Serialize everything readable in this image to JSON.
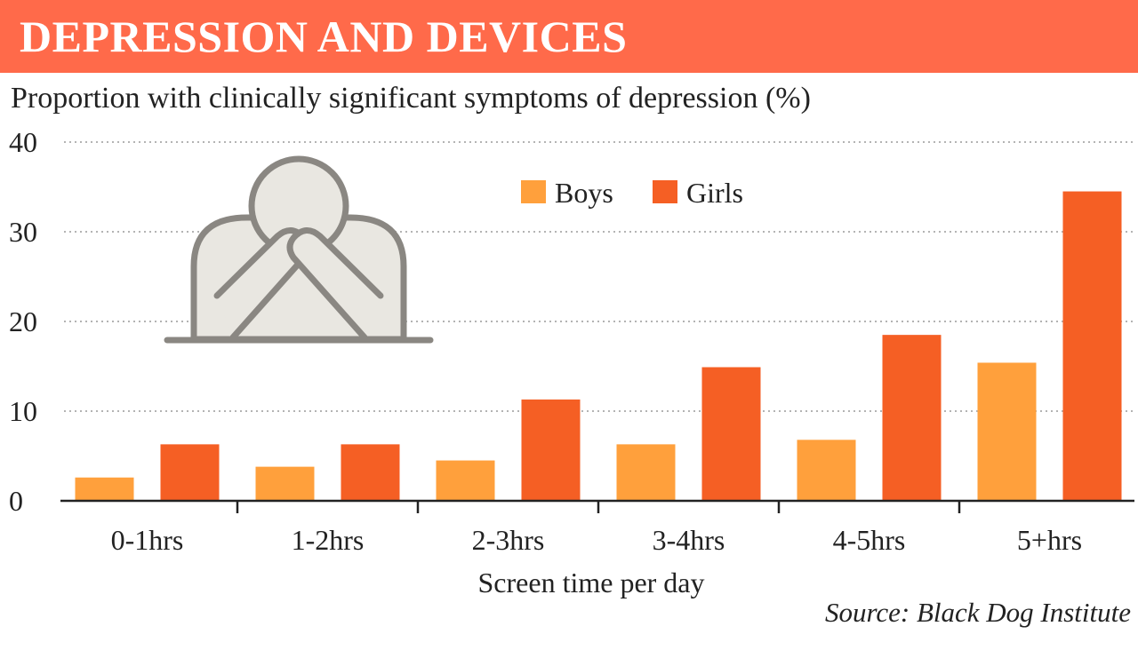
{
  "header": {
    "title": "DEPRESSION AND DEVICES",
    "banner_color": "#ff6a4a"
  },
  "subtitle": "Proportion with clinically significant symptoms of depression (%)",
  "source": "Source: Black Dog Institute",
  "illustration": {
    "icon": "person-covering-face-icon"
  },
  "chart_data": {
    "type": "bar",
    "categories": [
      "0-1hrs",
      "1-2hrs",
      "2-3hrs",
      "3-4hrs",
      "4-5hrs",
      "5+hrs"
    ],
    "series": [
      {
        "name": "Boys",
        "color": "#ffa03c",
        "values": [
          2.6,
          3.8,
          4.5,
          6.3,
          6.8,
          15.4
        ]
      },
      {
        "name": "Girls",
        "color": "#f55f24",
        "values": [
          6.3,
          6.3,
          11.3,
          14.9,
          18.5,
          34.5
        ]
      }
    ],
    "xlabel": "Screen time per day",
    "ylabel": "Proportion with clinically significant symptoms of depression (%)",
    "ylim": [
      0,
      40
    ],
    "yticks": [
      "0",
      "10",
      "20",
      "30",
      "40"
    ],
    "grid": true,
    "legend": "top-right"
  }
}
